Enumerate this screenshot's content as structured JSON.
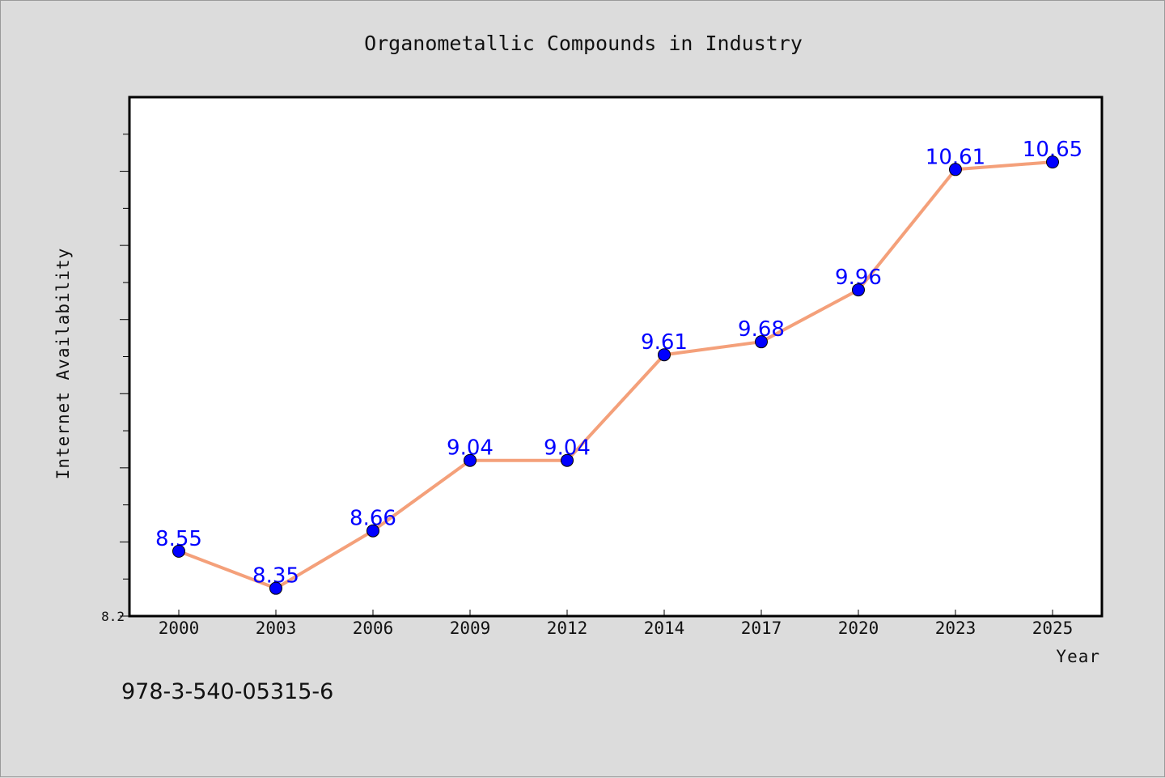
{
  "chart_data": {
    "type": "line",
    "title": "Organometallic Compounds in Industry",
    "xlabel": "Year",
    "ylabel": "Internet Availability",
    "categories": [
      "2000",
      "2003",
      "2006",
      "2009",
      "2012",
      "2014",
      "2017",
      "2020",
      "2023",
      "2025"
    ],
    "series": [
      {
        "values": [
          8.55,
          8.35,
          8.66,
          9.04,
          9.04,
          9.61,
          9.68,
          9.96,
          10.61,
          10.65
        ],
        "data_labels": [
          "8.55",
          "8.35",
          "8.66",
          "9.04",
          "9.04",
          "9.61",
          "9.68",
          "9.96",
          "10.61",
          "10.65"
        ]
      }
    ],
    "ylim": [
      8.2,
      11.0
    ],
    "y_tick_labels": [
      "8.2"
    ],
    "grid": false,
    "colors": {
      "line": "#f4a07a",
      "marker": "#0000ff",
      "data_label": "#0000ff",
      "plot_background": "#ffffff",
      "page_background": "#dcdcdc"
    }
  },
  "footer": {
    "isbn": "978-3-540-05315-6"
  }
}
